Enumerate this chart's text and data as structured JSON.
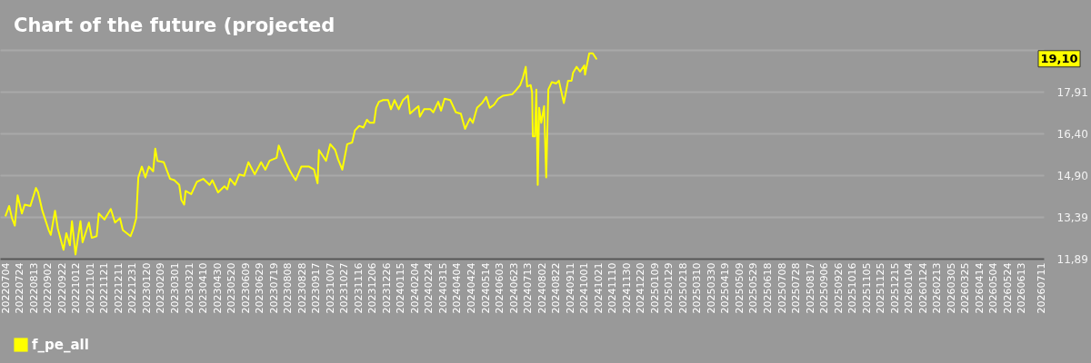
{
  "chart_data": {
    "type": "line",
    "title": "Chart of the future (projected",
    "x": [
      "2022-07-04",
      "2022-07-09",
      "2022-07-13",
      "2022-07-17",
      "2022-07-21",
      "2022-07-27",
      "2022-07-31",
      "2022-08-08",
      "2022-08-16",
      "2022-08-19",
      "2022-08-25",
      "2022-09-03",
      "2022-09-06",
      "2022-09-12",
      "2022-09-16",
      "2022-09-24",
      "2022-09-28",
      "2022-10-03",
      "2022-10-06",
      "2022-10-11",
      "2022-10-18",
      "2022-10-21",
      "2022-10-30",
      "2022-11-03",
      "2022-11-10",
      "2022-11-13",
      "2022-11-21",
      "2022-11-30",
      "2022-12-06",
      "2022-12-13",
      "2022-12-17",
      "2022-12-28",
      "2023-01-01",
      "2023-01-05",
      "2023-01-08",
      "2023-01-13",
      "2023-01-18",
      "2023-01-23",
      "2023-01-29",
      "2023-02-01",
      "2023-02-04",
      "2023-02-13",
      "2023-02-22",
      "2023-02-28",
      "2023-03-07",
      "2023-03-10",
      "2023-03-14",
      "2023-03-16",
      "2023-03-24",
      "2023-04-01",
      "2023-04-10",
      "2023-04-19",
      "2023-04-23",
      "2023-05-01",
      "2023-05-10",
      "2023-05-14",
      "2023-05-18",
      "2023-05-25",
      "2023-05-31",
      "2023-06-07",
      "2023-06-13",
      "2023-06-22",
      "2023-07-01",
      "2023-07-07",
      "2023-07-13",
      "2023-07-23",
      "2023-07-26",
      "2023-08-04",
      "2023-08-10",
      "2023-08-15",
      "2023-08-19",
      "2023-08-27",
      "2023-09-07",
      "2023-09-14",
      "2023-09-19",
      "2023-09-21",
      "2023-10-01",
      "2023-10-07",
      "2023-10-14",
      "2023-10-18",
      "2023-10-24",
      "2023-10-31",
      "2023-11-07",
      "2023-11-11",
      "2023-11-17",
      "2023-11-23",
      "2023-11-28",
      "2023-12-02",
      "2023-12-08",
      "2023-12-11",
      "2023-12-15",
      "2023-12-21",
      "2023-12-28",
      "2024-01-01",
      "2024-01-06",
      "2024-01-12",
      "2024-01-18",
      "2024-01-25",
      "2024-01-28",
      "2024-02-04",
      "2024-02-09",
      "2024-02-11",
      "2024-02-17",
      "2024-02-26",
      "2024-03-01",
      "2024-03-08",
      "2024-03-12",
      "2024-03-17",
      "2024-03-25",
      "2024-04-02",
      "2024-04-09",
      "2024-04-15",
      "2024-04-22",
      "2024-04-26",
      "2024-05-02",
      "2024-05-09",
      "2024-05-15",
      "2024-05-20",
      "2024-05-26",
      "2024-06-01",
      "2024-06-08",
      "2024-06-21",
      "2024-06-27",
      "2024-07-02",
      "2024-07-06",
      "2024-07-10",
      "2024-07-12",
      "2024-07-17",
      "2024-07-19",
      "2024-07-20",
      "2024-07-23",
      "2024-07-25",
      "2024-07-27",
      "2024-07-29",
      "2024-08-01",
      "2024-08-05",
      "2024-08-08",
      "2024-08-11",
      "2024-08-16",
      "2024-08-22",
      "2024-08-26",
      "2024-09-02",
      "2024-09-08",
      "2024-09-13",
      "2024-09-15",
      "2024-09-20",
      "2024-09-25",
      "2024-10-01",
      "2024-10-02",
      "2024-10-08",
      "2024-10-13",
      "2024-10-18"
    ],
    "series": [
      {
        "name": "f_pe_all",
        "color": "#ffff00",
        "values": [
          13.44,
          13.79,
          13.35,
          13.08,
          14.17,
          13.52,
          13.84,
          13.79,
          14.44,
          14.28,
          13.62,
          12.92,
          12.75,
          13.62,
          12.97,
          12.21,
          12.81,
          12.37,
          13.24,
          12.04,
          13.24,
          12.48,
          13.19,
          12.64,
          12.7,
          13.52,
          13.3,
          13.68,
          13.19,
          13.35,
          12.92,
          12.7,
          12.97,
          13.35,
          14.82,
          15.21,
          14.82,
          15.21,
          15.04,
          15.86,
          15.42,
          15.37,
          14.77,
          14.72,
          14.55,
          14.01,
          13.84,
          14.33,
          14.22,
          14.66,
          14.77,
          14.55,
          14.72,
          14.28,
          14.5,
          14.39,
          14.77,
          14.55,
          14.93,
          14.88,
          15.37,
          14.93,
          15.37,
          15.1,
          15.42,
          15.53,
          15.97,
          15.42,
          15.1,
          14.88,
          14.72,
          15.21,
          15.21,
          15.1,
          14.61,
          15.81,
          15.42,
          16.02,
          15.81,
          15.48,
          15.1,
          16.02,
          16.08,
          16.52,
          16.68,
          16.62,
          16.9,
          16.79,
          16.79,
          17.33,
          17.55,
          17.61,
          17.61,
          17.28,
          17.61,
          17.28,
          17.61,
          17.77,
          17.12,
          17.28,
          17.39,
          17.01,
          17.28,
          17.28,
          17.17,
          17.55,
          17.23,
          17.66,
          17.61,
          17.17,
          17.12,
          16.57,
          16.95,
          16.79,
          17.33,
          17.5,
          17.72,
          17.33,
          17.44,
          17.66,
          17.77,
          17.82,
          17.99,
          18.15,
          18.42,
          18.81,
          18.1,
          18.15,
          17.88,
          16.3,
          16.3,
          17.99,
          14.55,
          17.33,
          16.79,
          17.39,
          14.82,
          17.99,
          18.26,
          18.21,
          18.31,
          17.5,
          18.31,
          18.31,
          18.59,
          18.81,
          18.64,
          18.86,
          18.53,
          19.3,
          19.3,
          19.1
        ]
      }
    ],
    "xlim": [
      "2022-06-26",
      "2026-07-14"
    ],
    "xticks": [
      {
        "value": "2022-07-04",
        "label": "20220704"
      },
      {
        "value": "2022-07-24",
        "label": "20220724"
      },
      {
        "value": "2022-08-13",
        "label": "20220813"
      },
      {
        "value": "2022-09-02",
        "label": "20220902"
      },
      {
        "value": "2022-09-22",
        "label": "20220922"
      },
      {
        "value": "2022-10-12",
        "label": "20221012"
      },
      {
        "value": "2022-11-01",
        "label": "20221101"
      },
      {
        "value": "2022-11-21",
        "label": "20221121"
      },
      {
        "value": "2022-12-11",
        "label": "20221211"
      },
      {
        "value": "2022-12-31",
        "label": "20221231"
      },
      {
        "value": "2023-01-20",
        "label": "20230120"
      },
      {
        "value": "2023-02-09",
        "label": "20230209"
      },
      {
        "value": "2023-03-01",
        "label": "20230301"
      },
      {
        "value": "2023-03-21",
        "label": "20230321"
      },
      {
        "value": "2023-04-10",
        "label": "20230410"
      },
      {
        "value": "2023-04-30",
        "label": "20230430"
      },
      {
        "value": "2023-05-20",
        "label": "20230520"
      },
      {
        "value": "2023-06-09",
        "label": "20230609"
      },
      {
        "value": "2023-06-29",
        "label": "20230629"
      },
      {
        "value": "2023-07-19",
        "label": "20230719"
      },
      {
        "value": "2023-08-08",
        "label": "20230808"
      },
      {
        "value": "2023-08-28",
        "label": "20230828"
      },
      {
        "value": "2023-09-17",
        "label": "20230917"
      },
      {
        "value": "2023-10-07",
        "label": "20231007"
      },
      {
        "value": "2023-10-27",
        "label": "20231027"
      },
      {
        "value": "2023-11-16",
        "label": "20231116"
      },
      {
        "value": "2023-12-06",
        "label": "20231206"
      },
      {
        "value": "2023-12-26",
        "label": "20231226"
      },
      {
        "value": "2024-01-15",
        "label": "20240115"
      },
      {
        "value": "2024-02-04",
        "label": "20240204"
      },
      {
        "value": "2024-02-24",
        "label": "20240224"
      },
      {
        "value": "2024-03-15",
        "label": "20240315"
      },
      {
        "value": "2024-04-04",
        "label": "20240404"
      },
      {
        "value": "2024-04-24",
        "label": "20240424"
      },
      {
        "value": "2024-05-14",
        "label": "20240514"
      },
      {
        "value": "2024-06-03",
        "label": "20240603"
      },
      {
        "value": "2024-06-23",
        "label": "20240623"
      },
      {
        "value": "2024-07-13",
        "label": "20240713"
      },
      {
        "value": "2024-08-02",
        "label": "20240802"
      },
      {
        "value": "2024-08-22",
        "label": "20240822"
      },
      {
        "value": "2024-09-11",
        "label": "20240911"
      },
      {
        "value": "2024-10-01",
        "label": "20241001"
      },
      {
        "value": "2024-10-21",
        "label": "20241021"
      },
      {
        "value": "2024-11-10",
        "label": "20241110"
      },
      {
        "value": "2024-11-30",
        "label": "20241130"
      },
      {
        "value": "2024-12-20",
        "label": "20241220"
      },
      {
        "value": "2025-01-09",
        "label": "20250109"
      },
      {
        "value": "2025-01-29",
        "label": "20250129"
      },
      {
        "value": "2025-02-18",
        "label": "20250218"
      },
      {
        "value": "2025-03-10",
        "label": "20250310"
      },
      {
        "value": "2025-03-30",
        "label": "20250330"
      },
      {
        "value": "2025-04-19",
        "label": "20250419"
      },
      {
        "value": "2025-05-09",
        "label": "20250509"
      },
      {
        "value": "2025-05-29",
        "label": "20250529"
      },
      {
        "value": "2025-06-18",
        "label": "20250618"
      },
      {
        "value": "2025-07-08",
        "label": "20250708"
      },
      {
        "value": "2025-07-28",
        "label": "20250728"
      },
      {
        "value": "2025-08-17",
        "label": "20250817"
      },
      {
        "value": "2025-09-06",
        "label": "20250906"
      },
      {
        "value": "2025-09-26",
        "label": "20250926"
      },
      {
        "value": "2025-10-16",
        "label": "20251016"
      },
      {
        "value": "2025-11-05",
        "label": "20251105"
      },
      {
        "value": "2025-11-25",
        "label": "20251125"
      },
      {
        "value": "2025-12-15",
        "label": "20251215"
      },
      {
        "value": "2026-01-04",
        "label": "20260104"
      },
      {
        "value": "2026-01-24",
        "label": "20260124"
      },
      {
        "value": "2026-02-13",
        "label": "20260213"
      },
      {
        "value": "2026-03-05",
        "label": "20260305"
      },
      {
        "value": "2026-03-25",
        "label": "20260325"
      },
      {
        "value": "2026-04-14",
        "label": "20260414"
      },
      {
        "value": "2026-05-04",
        "label": "20260504"
      },
      {
        "value": "2026-05-24",
        "label": "20260524"
      },
      {
        "value": "2026-06-13",
        "label": "20260613"
      },
      {
        "value": "2026-07-11",
        "label": "20260711"
      }
    ],
    "ylim": [
      11.89,
      19.42
    ],
    "yticks": [
      {
        "value": 11.89,
        "label": "11,89"
      },
      {
        "value": 13.39,
        "label": "13,39"
      },
      {
        "value": 14.9,
        "label": "14,90"
      },
      {
        "value": 16.4,
        "label": "16,40"
      },
      {
        "value": 17.91,
        "label": "17,91"
      },
      {
        "value": 19.42,
        "label": null
      }
    ],
    "grid": "y",
    "legend": "bottom left",
    "annotations": [
      "19,10"
    ]
  }
}
